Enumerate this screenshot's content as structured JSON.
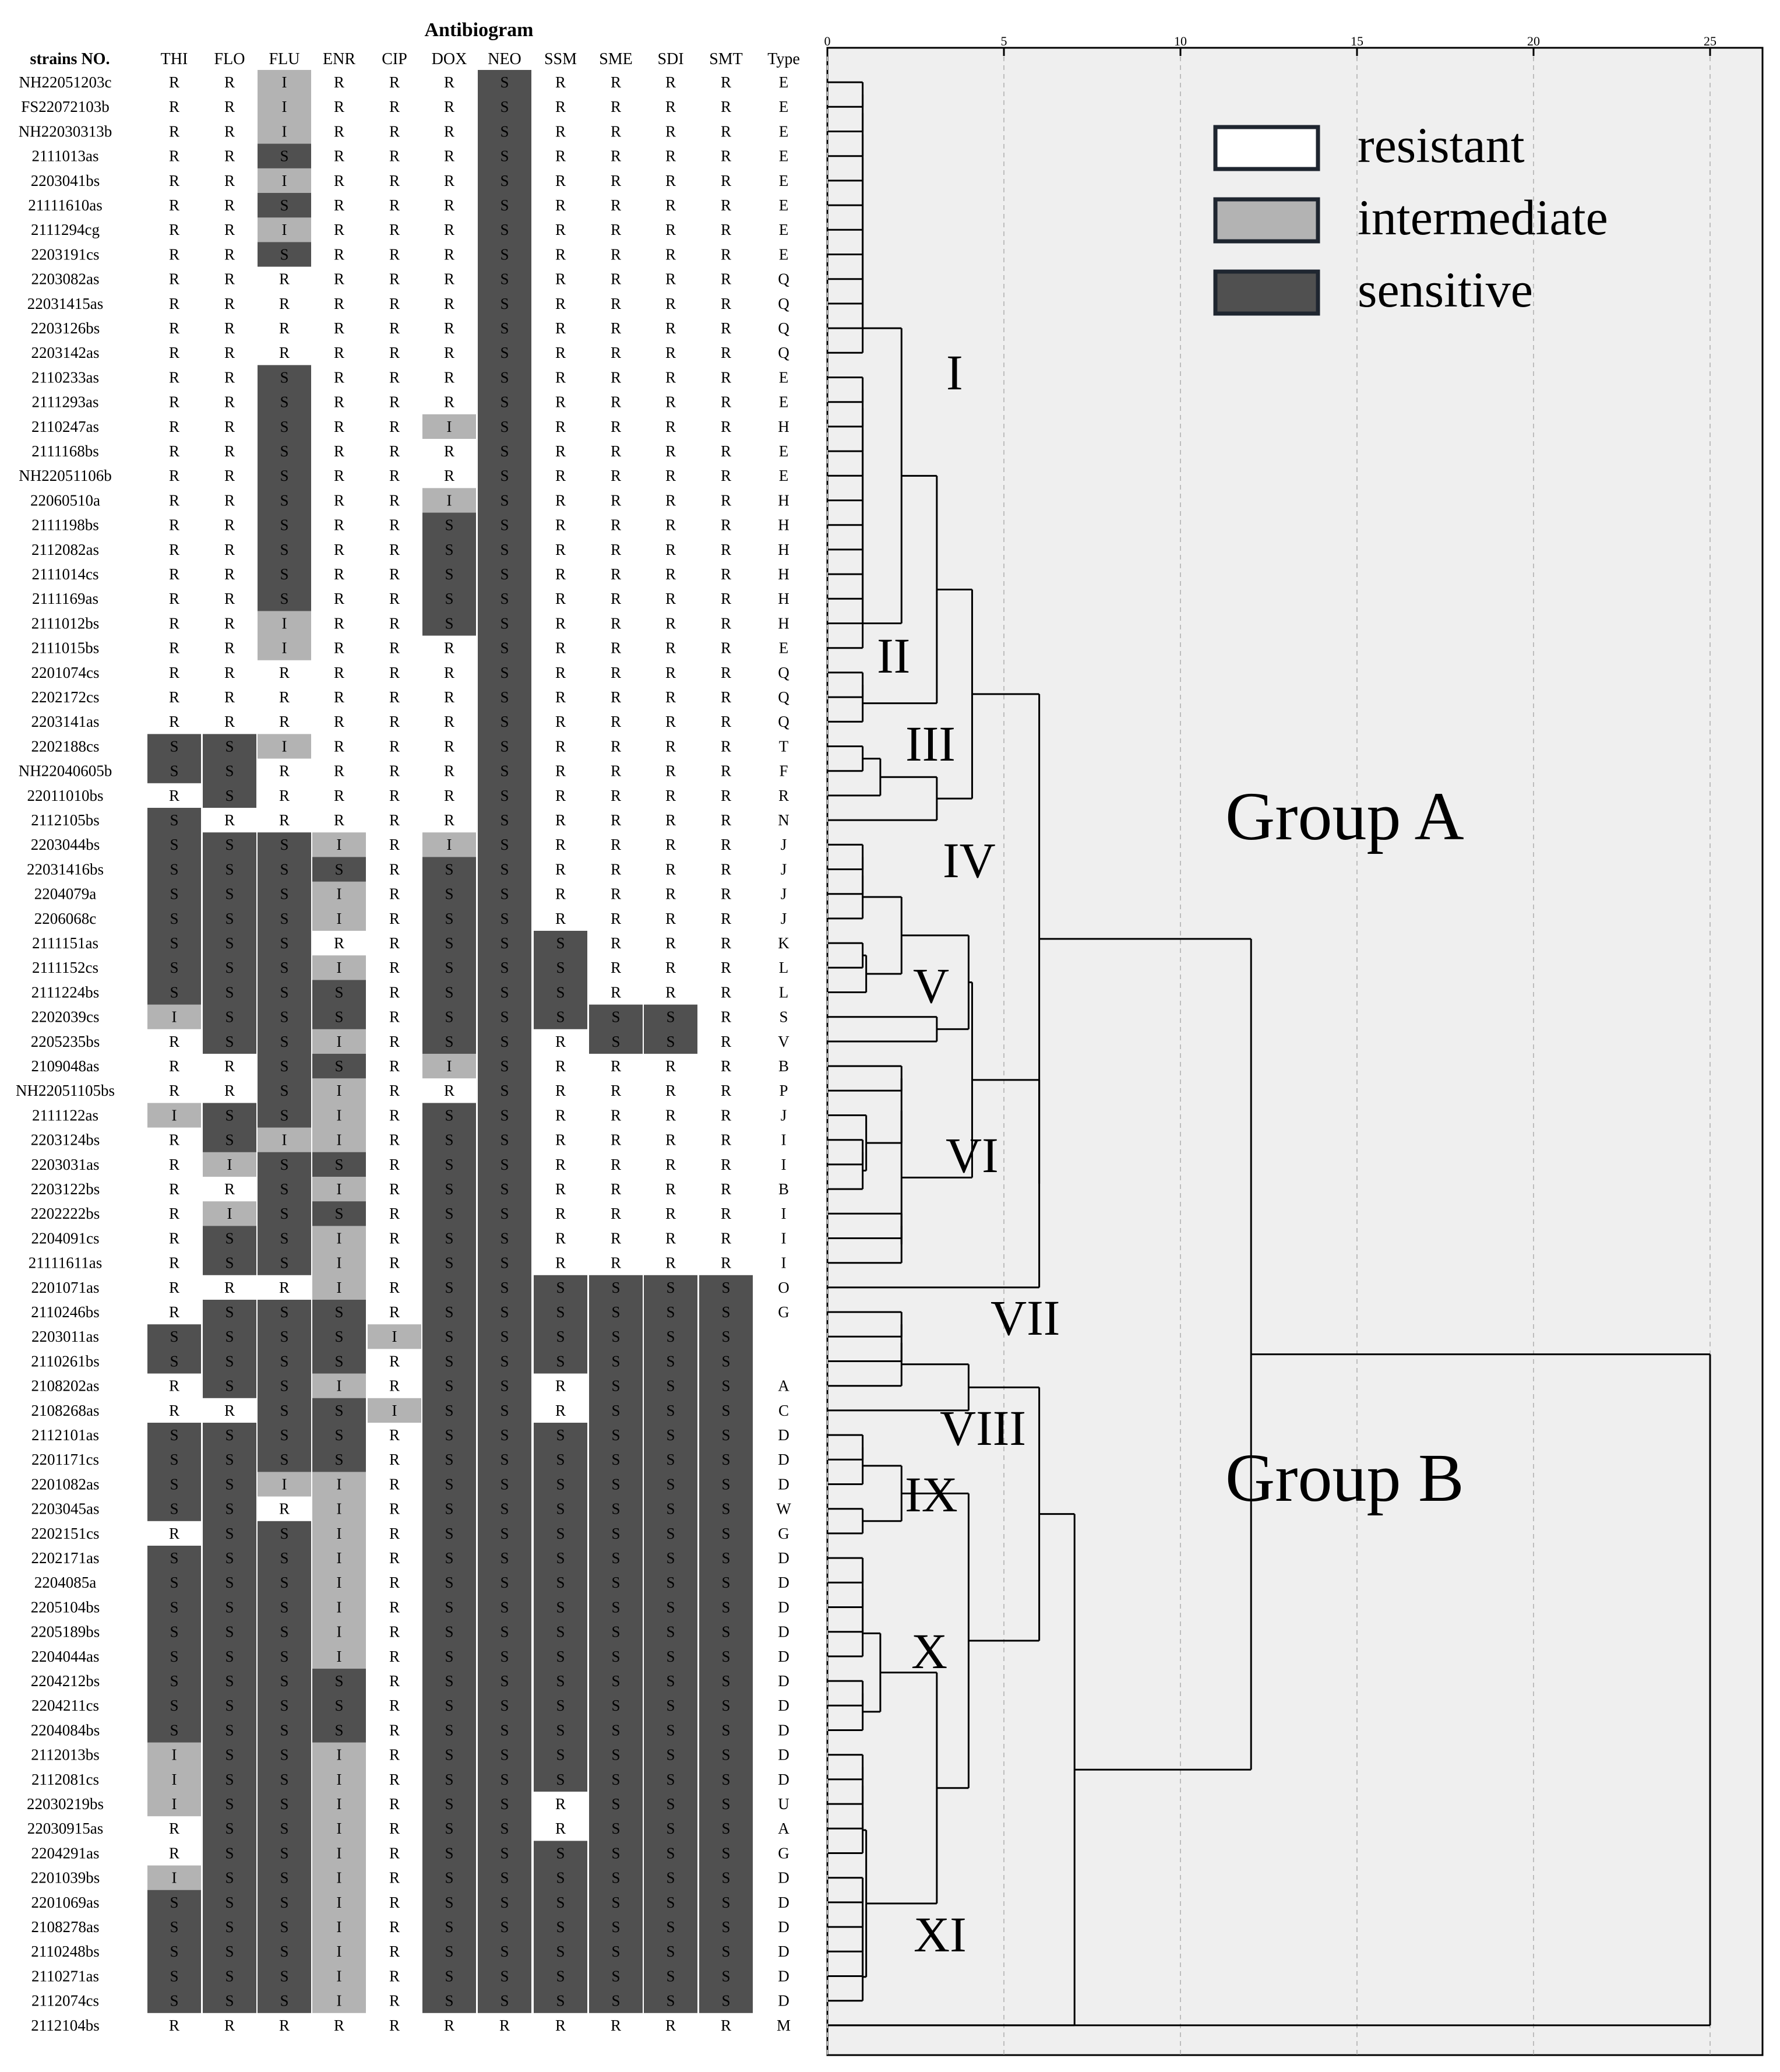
{
  "title": "Antibiogram",
  "strain_header": "strains NO.",
  "antibiotics": [
    "THI",
    "FLO",
    "FLU",
    "ENR",
    "CIP",
    "DOX",
    "NEO",
    "SSM",
    "SME",
    "SDI",
    "SMT"
  ],
  "type_header": "Type",
  "legend": [
    {
      "key": "R",
      "label": "resistant",
      "color": "#ffffff"
    },
    {
      "key": "I",
      "label": "intermediate",
      "color": "#b3b3b3"
    },
    {
      "key": "S",
      "label": "sensitive",
      "color": "#505050"
    }
  ],
  "colors": {
    "resistant": "#ffffff",
    "intermediate": "#b3b3b3",
    "sensitive": "#505050",
    "panel": "#efefef",
    "line": "#000000"
  },
  "axis_ticks": [
    0,
    5,
    10,
    15,
    20,
    25
  ],
  "cluster_labels": [
    "I",
    "II",
    "III",
    "IV",
    "V",
    "VI",
    "VII",
    "VIII",
    "IX",
    "X",
    "XI"
  ],
  "group_labels": [
    "Group A",
    "Group B"
  ],
  "rows": [
    {
      "id": "NH22051203c",
      "res": "RRIRRRSRRRR",
      "type": "E"
    },
    {
      "id": "FS22072103b",
      "res": "RRIRRRSRRRR",
      "type": "E"
    },
    {
      "id": "NH22030313b",
      "res": "RRIRRRSRRRR",
      "type": "E"
    },
    {
      "id": "2111013as",
      "res": "RRSRRRSRRRR",
      "type": "E"
    },
    {
      "id": "2203041bs",
      "res": "RRIRRRSRRRR",
      "type": "E"
    },
    {
      "id": "21111610as",
      "res": "RRSRRRSRRRR",
      "type": "E"
    },
    {
      "id": "2111294cg",
      "res": "RRIRRRSRRRR",
      "type": "E"
    },
    {
      "id": "2203191cs",
      "res": "RRSRRRSRRRR",
      "type": "E"
    },
    {
      "id": "2203082as",
      "res": "RRRRRRSRRRR",
      "type": "Q"
    },
    {
      "id": "22031415as",
      "res": "RRRRRRSRRRR",
      "type": "Q"
    },
    {
      "id": "2203126bs",
      "res": "RRRRRRSRRRR",
      "type": "Q"
    },
    {
      "id": "2203142as",
      "res": "RRRRRRSRRRR",
      "type": "Q"
    },
    {
      "id": "2110233as",
      "res": "RRSRRRSRRRR",
      "type": "E"
    },
    {
      "id": "2111293as",
      "res": "RRSRRRSRRRR",
      "type": "E"
    },
    {
      "id": "2110247as",
      "res": "RRSRRISRRRR",
      "type": "H"
    },
    {
      "id": "2111168bs",
      "res": "RRSRRRSRRRR",
      "type": "E"
    },
    {
      "id": "NH22051106b",
      "res": "RRSRRRSRRRR",
      "type": "E"
    },
    {
      "id": "22060510a",
      "res": "RRSRRISRRRR",
      "type": "H"
    },
    {
      "id": "2111198bs",
      "res": "RRSRRSSRRRR",
      "type": "H"
    },
    {
      "id": "2112082as",
      "res": "RRSRRSSRRRR",
      "type": "H"
    },
    {
      "id": "2111014cs",
      "res": "RRSRRSSRRRR",
      "type": "H"
    },
    {
      "id": "2111169as",
      "res": "RRSRRSSRRRR",
      "type": "H"
    },
    {
      "id": "2111012bs",
      "res": "RRIRRSSRRRR",
      "type": "H"
    },
    {
      "id": "2111015bs",
      "res": "RRIRRRSRRRR",
      "type": "E"
    },
    {
      "id": "2201074cs",
      "res": "RRRRRRSRRRR",
      "type": "Q"
    },
    {
      "id": "2202172cs",
      "res": "RRRRRRSRRRR",
      "type": "Q"
    },
    {
      "id": "2203141as",
      "res": "RRRRRRSRRRR",
      "type": "Q"
    },
    {
      "id": "2202188cs",
      "res": "SSIRRRSRRRR",
      "type": "T"
    },
    {
      "id": "NH22040605b",
      "res": "SSRRRRSRRRR",
      "type": "F"
    },
    {
      "id": "22011010bs",
      "res": "RSRRRRSRRRR",
      "type": "R"
    },
    {
      "id": "2112105bs",
      "res": "SRRRRRSRRRR",
      "type": "N"
    },
    {
      "id": "2203044bs",
      "res": "SSSIRISRRRR",
      "type": "J"
    },
    {
      "id": "22031416bs",
      "res": "SSSSRSSRRRR",
      "type": "J"
    },
    {
      "id": "2204079a",
      "res": "SSSIRSSRRRR",
      "type": "J"
    },
    {
      "id": "2206068c",
      "res": "SSSIRSSRRRR",
      "type": "J"
    },
    {
      "id": "2111151as",
      "res": "SSSRRSSSRRR",
      "type": "K"
    },
    {
      "id": "2111152cs",
      "res": "SSSIRSSSRRR",
      "type": "L"
    },
    {
      "id": "2111224bs",
      "res": "SSSSRSSSRRR",
      "type": "L"
    },
    {
      "id": "2202039cs",
      "res": "ISSSRSSSSSR",
      "type": "S"
    },
    {
      "id": "2205235bs",
      "res": "RSSIRSSRSSR",
      "type": "V"
    },
    {
      "id": "2109048as",
      "res": "RRSSRISRRRR",
      "type": "B"
    },
    {
      "id": "NH22051105bs",
      "res": "RRSIRRSRRRR",
      "type": "P"
    },
    {
      "id": "2111122as",
      "res": "ISSIRSSRRRR",
      "type": "J"
    },
    {
      "id": "2203124bs",
      "res": "RSIIRSSRRRR",
      "type": "I"
    },
    {
      "id": "2203031as",
      "res": "RISSRSSRRRR",
      "type": "I"
    },
    {
      "id": "2203122bs",
      "res": "RRSIRSSRRRR",
      "type": "B"
    },
    {
      "id": "2202222bs",
      "res": "RISSRSSRRRR",
      "type": "I"
    },
    {
      "id": "2204091cs",
      "res": "RSSIRSSRRRR",
      "type": "I"
    },
    {
      "id": "21111611as",
      "res": "RSSIRSSRRRR",
      "type": "I"
    },
    {
      "id": "2201071as",
      "res": "RRRIRSSSSSS",
      "type": "O"
    },
    {
      "id": "2110246bs",
      "res": "RSSSRSSSSSS",
      "type": "G"
    },
    {
      "id": "2203011as",
      "res": "SSSSISSSSSS",
      "type": ""
    },
    {
      "id": "2110261bs",
      "res": "SSSSRSSSSSS",
      "type": ""
    },
    {
      "id": "2108202as",
      "res": "RSSIRSSRSSS",
      "type": "A"
    },
    {
      "id": "2108268as",
      "res": "RRSSISSRSSS",
      "type": "C"
    },
    {
      "id": "2112101as",
      "res": "SSSSRSSSSSS",
      "type": "D"
    },
    {
      "id": "2201171cs",
      "res": "SSSSRSSSSSS",
      "type": "D"
    },
    {
      "id": "2201082as",
      "res": "SSIIRSSSSSS",
      "type": "D"
    },
    {
      "id": "2203045as",
      "res": "SSRIRSSSSSS",
      "type": "W"
    },
    {
      "id": "2202151cs",
      "res": "RSSIRSSSSSS",
      "type": "G"
    },
    {
      "id": "2202171as",
      "res": "SSSIRSSSSSS",
      "type": "D"
    },
    {
      "id": "2204085a",
      "res": "SSSIRSSSSSS",
      "type": "D"
    },
    {
      "id": "2205104bs",
      "res": "SSSIRSSSSSS",
      "type": "D"
    },
    {
      "id": "2205189bs",
      "res": "SSSIRSSSSSS",
      "type": "D"
    },
    {
      "id": "2204044as",
      "res": "SSSIRSSSSSS",
      "type": "D"
    },
    {
      "id": "2204212bs",
      "res": "SSSSRSSSSSS",
      "type": "D"
    },
    {
      "id": "2204211cs",
      "res": "SSSSRSSSSSS",
      "type": "D"
    },
    {
      "id": "2204084bs",
      "res": "SSSSRSSSSSS",
      "type": "D"
    },
    {
      "id": "2112013bs",
      "res": "ISSIRSSSSSS",
      "type": "D"
    },
    {
      "id": "2112081cs",
      "res": "ISSIRSSSSSS",
      "type": "D"
    },
    {
      "id": "22030219bs",
      "res": "ISSIRSSRSSS",
      "type": "U"
    },
    {
      "id": "22030915as",
      "res": "RSSIRSSRSSS",
      "type": "A"
    },
    {
      "id": "2204291as",
      "res": "RSSIRSSSSSS",
      "type": "G"
    },
    {
      "id": "2201039bs",
      "res": "ISSIRSSSSSS",
      "type": "D"
    },
    {
      "id": "2201069as",
      "res": "SSSIRSSSSSS",
      "type": "D"
    },
    {
      "id": "2108278as",
      "res": "SSSIRSSSSSS",
      "type": "D"
    },
    {
      "id": "2110248bs",
      "res": "SSSIRSSSSSS",
      "type": "D"
    },
    {
      "id": "2110271as",
      "res": "SSSIRSSSSSS",
      "type": "D"
    },
    {
      "id": "2112074cs",
      "res": "SSSIRSSSSSS",
      "type": "D"
    },
    {
      "id": "2112104bs",
      "res": "RRRRRRRRRRR",
      "type": "M"
    }
  ]
}
